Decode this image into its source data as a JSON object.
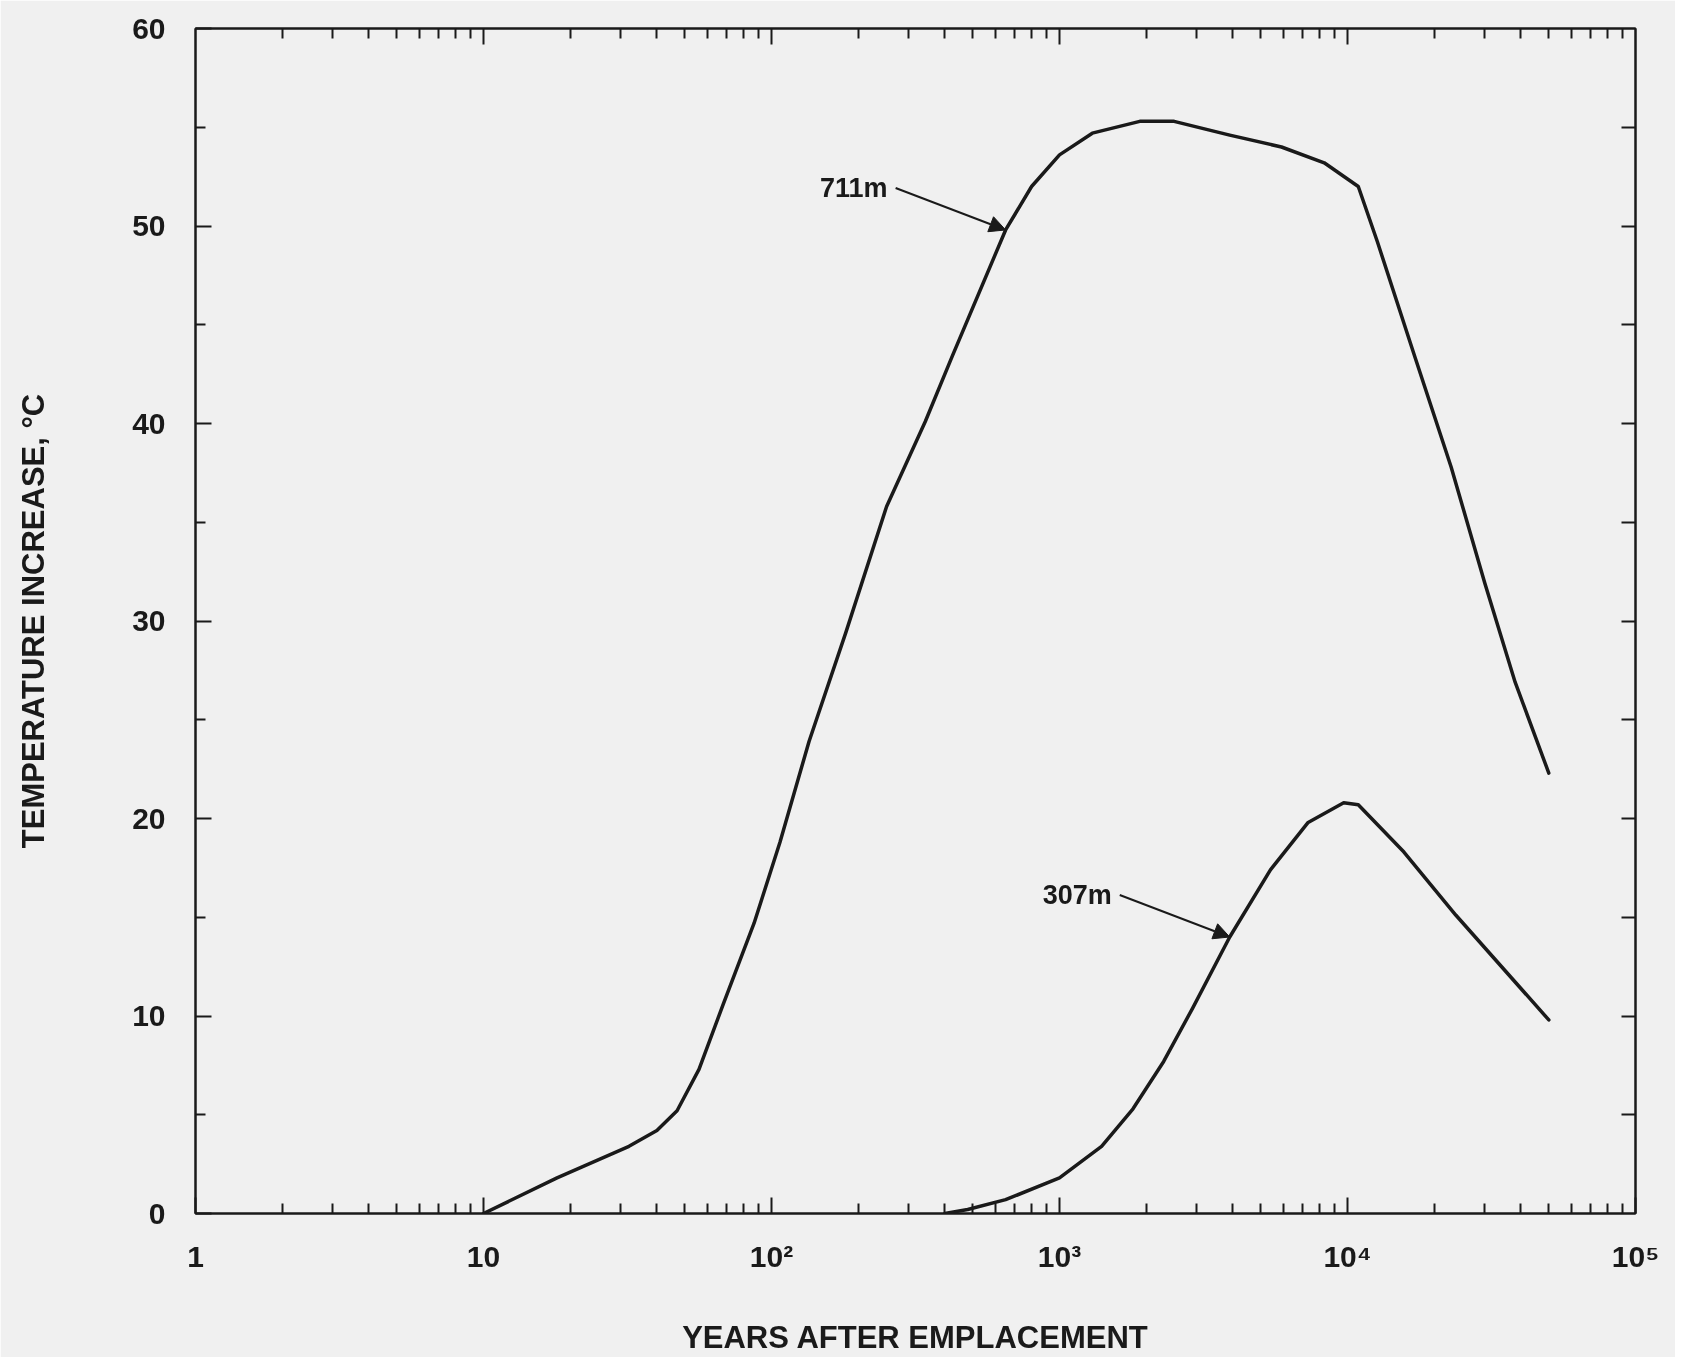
{
  "chart_data": {
    "type": "line",
    "xlabel": "YEARS AFTER EMPLACEMENT",
    "ylabel": "TEMPERATURE INCREASE, °C",
    "log": "x",
    "line_style": "solid",
    "xlim": [
      1,
      100000
    ],
    "xticks": [
      1,
      10,
      {
        "value": 100,
        "label": "10²"
      },
      {
        "value": 1000,
        "label": "10³"
      },
      {
        "value": 10000,
        "label": "10⁴"
      },
      {
        "value": 100000,
        "label": "10⁵"
      }
    ],
    "ylim": [
      0,
      60
    ],
    "yticks": [
      0,
      {
        "value": 5,
        "label": null
      },
      10,
      {
        "value": 15,
        "label": null
      },
      20,
      {
        "value": 25,
        "label": null
      },
      30,
      {
        "value": 35,
        "label": null
      },
      40,
      {
        "value": 45,
        "label": null
      },
      50,
      {
        "value": 55,
        "label": null
      },
      60
    ],
    "series": [
      {
        "color": "#1a1a1a",
        "x": [
          10,
          18,
          32,
          40,
          47,
          56,
          68,
          87,
          107,
          135,
          181,
          251,
          342,
          424,
          650,
          800,
          1000,
          1300,
          1900,
          2500,
          3900,
          5900,
          8300,
          10900,
          12700,
          17200,
          22900,
          30000,
          38200,
          50000
        ],
        "values": [
          0,
          1.8,
          3.4,
          4.2,
          5.2,
          7.3,
          10.6,
          14.7,
          18.8,
          23.9,
          29.4,
          35.8,
          40.1,
          43.4,
          49.8,
          52.0,
          53.6,
          54.7,
          55.3,
          55.3,
          54.6,
          54.0,
          53.2,
          52.0,
          49.2,
          43.3,
          37.8,
          31.9,
          26.9,
          22.3
        ]
      },
      {
        "color": "#1a1a1a",
        "x": [
          400,
          480,
          650,
          1000,
          1400,
          1800,
          2300,
          2900,
          3900,
          5400,
          7300,
          9700,
          10900,
          15700,
          23800,
          50000
        ],
        "values": [
          0,
          0.2,
          0.7,
          1.8,
          3.4,
          5.3,
          7.7,
          10.4,
          14.0,
          17.4,
          19.8,
          20.8,
          20.7,
          18.3,
          15.1,
          9.8
        ]
      }
    ],
    "annotations": [
      {
        "text": "711m",
        "x": 650,
        "y": 49.8
      },
      {
        "text": "307m",
        "x": 3900,
        "y": 14.0
      }
    ]
  }
}
